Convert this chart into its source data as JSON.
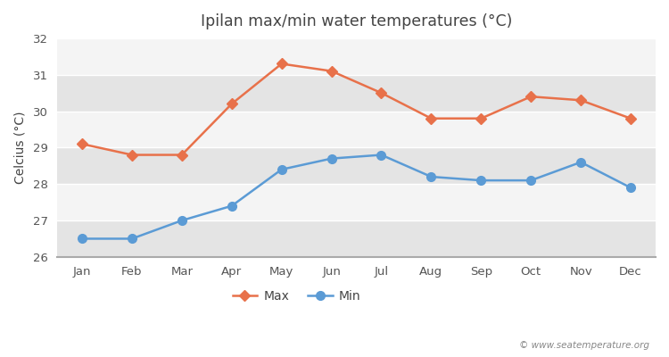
{
  "months": [
    "Jan",
    "Feb",
    "Mar",
    "Apr",
    "May",
    "Jun",
    "Jul",
    "Aug",
    "Sep",
    "Oct",
    "Nov",
    "Dec"
  ],
  "max_temps": [
    29.1,
    28.8,
    28.8,
    30.2,
    31.3,
    31.1,
    30.5,
    29.8,
    29.8,
    30.4,
    30.3,
    29.8
  ],
  "min_temps": [
    26.5,
    26.5,
    27.0,
    27.4,
    28.4,
    28.7,
    28.8,
    28.2,
    28.1,
    28.1,
    28.6,
    27.9
  ],
  "max_color": "#E8714A",
  "min_color": "#5B9BD5",
  "title": "Ipilan max/min water temperatures (°C)",
  "ylabel": "Celcius (°C)",
  "ylim": [
    26,
    32
  ],
  "yticks": [
    26,
    27,
    28,
    29,
    30,
    31,
    32
  ],
  "fig_bg_color": "#FFFFFF",
  "plot_bg_color": "#E8E8E8",
  "band_color_light": "#F4F4F4",
  "band_color_dark": "#E4E4E4",
  "grid_color": "#FFFFFF",
  "bottom_spine_color": "#AAAAAA",
  "tick_color": "#555555",
  "label_color": "#444444",
  "watermark": "© www.seatemperature.org",
  "watermark_color": "#888888",
  "legend_max": "Max",
  "legend_min": "Min"
}
